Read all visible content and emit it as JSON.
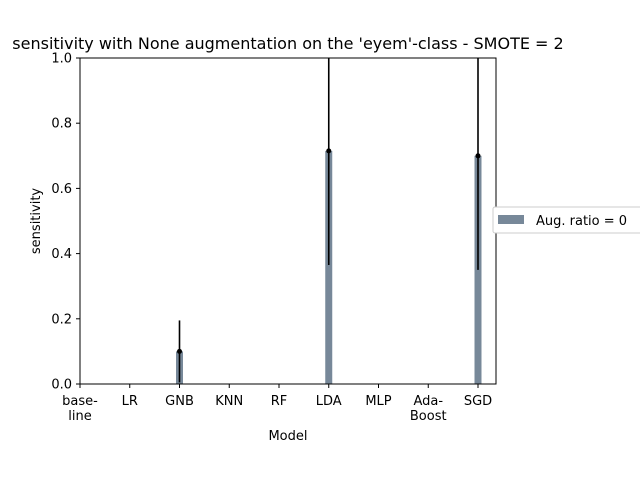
{
  "chart_data": {
    "type": "bar",
    "title": "sensitivity with None augmentation on the 'eyem'-class - SMOTE = 2",
    "xlabel": "Model",
    "ylabel": "sensitivity",
    "categories": [
      [
        "base-",
        "line"
      ],
      [
        "LR"
      ],
      [
        "GNB"
      ],
      [
        "KNN"
      ],
      [
        "RF"
      ],
      [
        "LDA"
      ],
      [
        "MLP"
      ],
      [
        "Ada-",
        "Boost"
      ],
      [
        "SGD"
      ]
    ],
    "ylim": [
      0,
      1.0
    ],
    "yticks": [
      "0.0",
      "0.2",
      "0.4",
      "0.6",
      "0.8",
      "1.0"
    ],
    "grid": false,
    "legend_position": "right",
    "series": [
      {
        "name": "Aug. ratio = 0",
        "color": "#778899",
        "values": [
          0,
          0,
          0.1,
          0,
          0,
          0.715,
          0,
          0,
          0.7
        ],
        "errors": [
          0,
          0,
          0.095,
          0,
          0,
          0.35,
          0,
          0,
          0.35
        ]
      }
    ]
  }
}
